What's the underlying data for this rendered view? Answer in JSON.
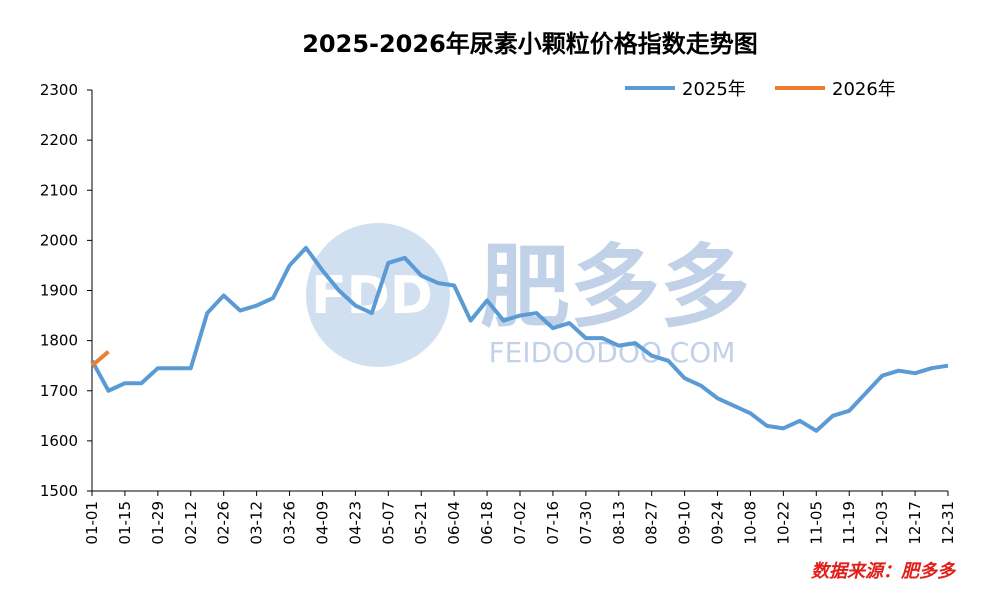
{
  "chart_data": {
    "type": "line",
    "title": "2025-2026年尿素小颗粒价格指数走势图",
    "categories": [
      "01-01",
      null,
      "01-15",
      null,
      "01-29",
      null,
      "02-12",
      null,
      "02-26",
      null,
      "03-12",
      null,
      "03-26",
      null,
      "04-09",
      null,
      "04-23",
      null,
      "05-07",
      null,
      "05-21",
      null,
      "06-04",
      null,
      "06-18",
      null,
      "07-02",
      null,
      "07-16",
      null,
      "07-30",
      null,
      "08-13",
      null,
      "08-27",
      null,
      "09-10",
      null,
      "09-24",
      null,
      "10-08",
      null,
      "10-22",
      null,
      "11-05",
      null,
      "11-19",
      null,
      "12-03",
      null,
      "12-17",
      null,
      "12-31"
    ],
    "series": [
      {
        "name": "2025年",
        "color": "#5b9bd5",
        "values": [
          1760,
          1700,
          1715,
          1715,
          1745,
          1745,
          1745,
          1855,
          1890,
          1860,
          1870,
          1885,
          1950,
          1985,
          1940,
          1900,
          1870,
          1855,
          1955,
          1965,
          1930,
          1915,
          1910,
          1840,
          1880,
          1840,
          1850,
          1855,
          1825,
          1835,
          1805,
          1805,
          1790,
          1795,
          1770,
          1760,
          1725,
          1710,
          1685,
          1670,
          1655,
          1630,
          1625,
          1640,
          1620,
          1650,
          1660,
          1695,
          1730,
          1740,
          1735,
          1745,
          1750
        ]
      },
      {
        "name": "2026年",
        "color": "#ed7d31",
        "values": [
          1750,
          1778,
          null,
          null,
          null,
          null,
          null,
          null,
          null,
          null,
          null,
          null,
          null,
          null,
          null,
          null,
          null,
          null,
          null,
          null,
          null,
          null,
          null,
          null,
          null,
          null,
          null,
          null,
          null,
          null,
          null,
          null,
          null,
          null,
          null,
          null,
          null,
          null,
          null,
          null,
          null,
          null,
          null,
          null,
          null,
          null,
          null,
          null,
          null,
          null,
          null,
          null,
          null
        ]
      }
    ],
    "ylim": [
      1500,
      2300
    ],
    "yticks": [
      1500,
      1600,
      1700,
      1800,
      1900,
      2000,
      2100,
      2200,
      2300
    ],
    "grid": false,
    "legend": "top-right",
    "source": "数据来源：肥多多",
    "watermark": {
      "logo": "FDD",
      "name": "肥多多",
      "site": "FEIDOODOO.COM"
    }
  }
}
